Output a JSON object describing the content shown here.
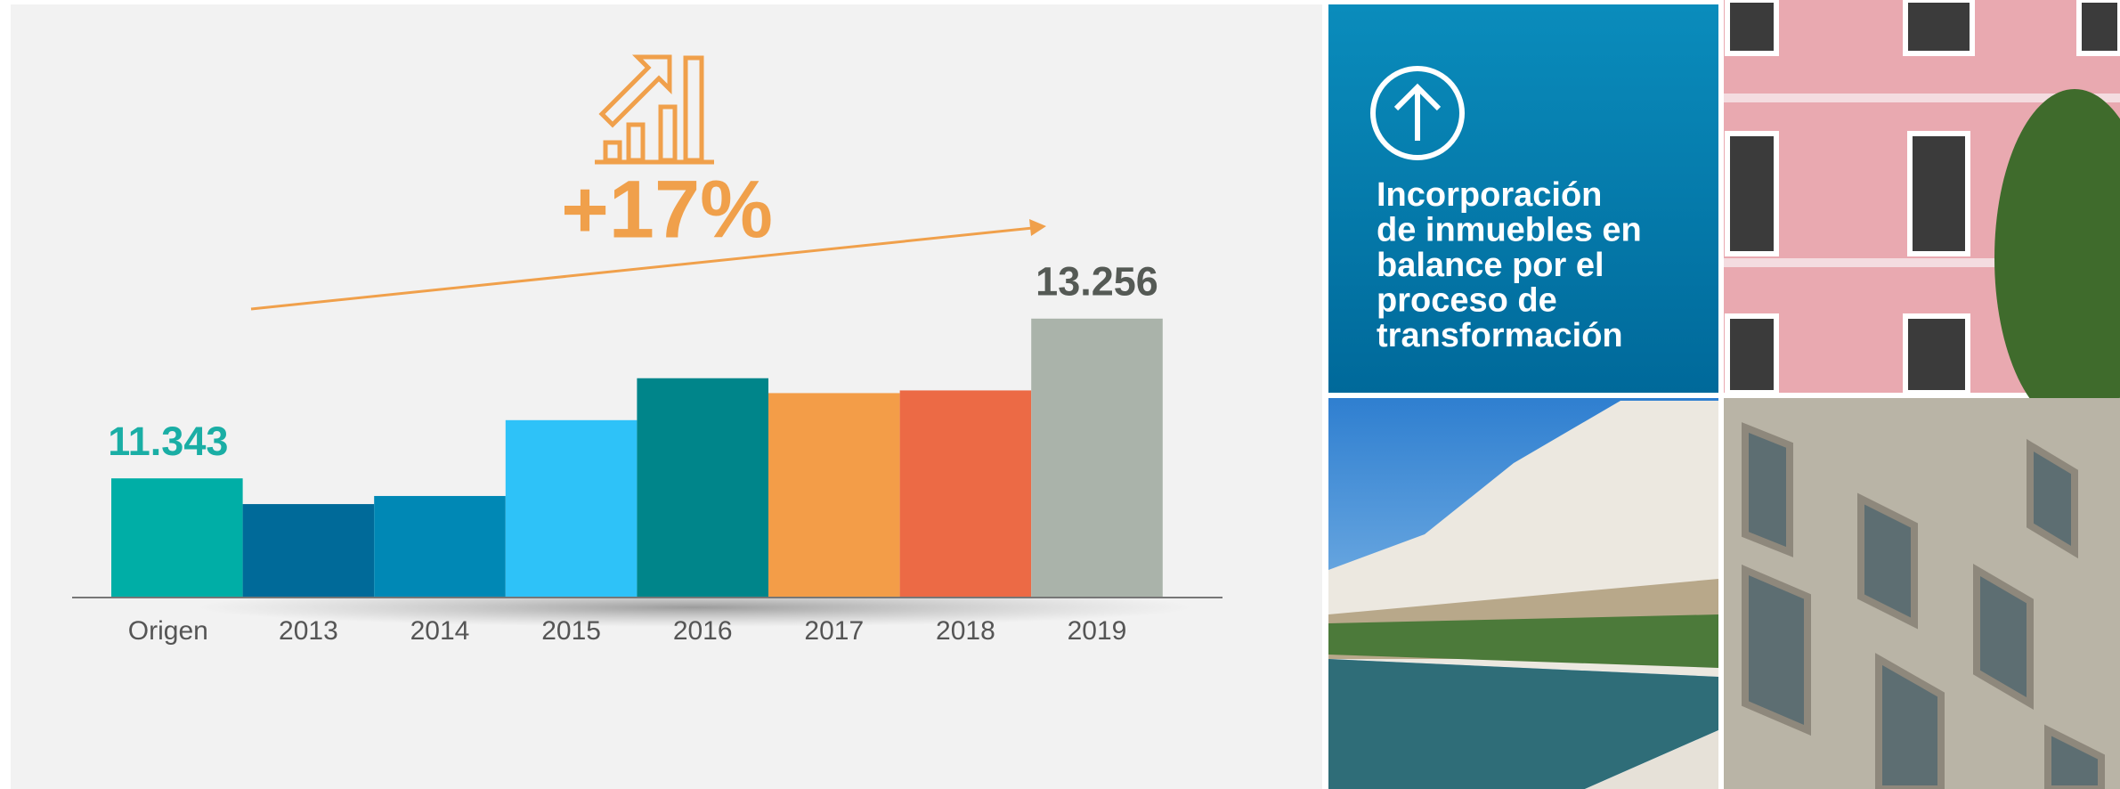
{
  "chart_data": {
    "type": "bar",
    "categories": [
      "Origen",
      "2013",
      "2014",
      "2015",
      "2016",
      "2017",
      "2018",
      "2019"
    ],
    "values": [
      11343,
      11035,
      11132,
      12040,
      12542,
      12364,
      12396,
      13256
    ],
    "value_labels": [
      "11.343",
      null,
      null,
      null,
      null,
      null,
      null,
      "13.256"
    ],
    "value_label_colors": [
      "#1aaea5",
      null,
      null,
      null,
      null,
      null,
      null,
      "#555a55"
    ],
    "colors": [
      "#00aea6",
      "#006a99",
      "#0088b5",
      "#2ec2f8",
      "#00858a",
      "#f39d48",
      "#ec6a45",
      "#aab3aa"
    ],
    "ylim": [
      9916,
      14000
    ],
    "annotation": "+17%"
  },
  "panel": {
    "lines": [
      "Incorporación",
      "de inmuebles en",
      "balance por el",
      "proceso de",
      "transformación"
    ]
  }
}
